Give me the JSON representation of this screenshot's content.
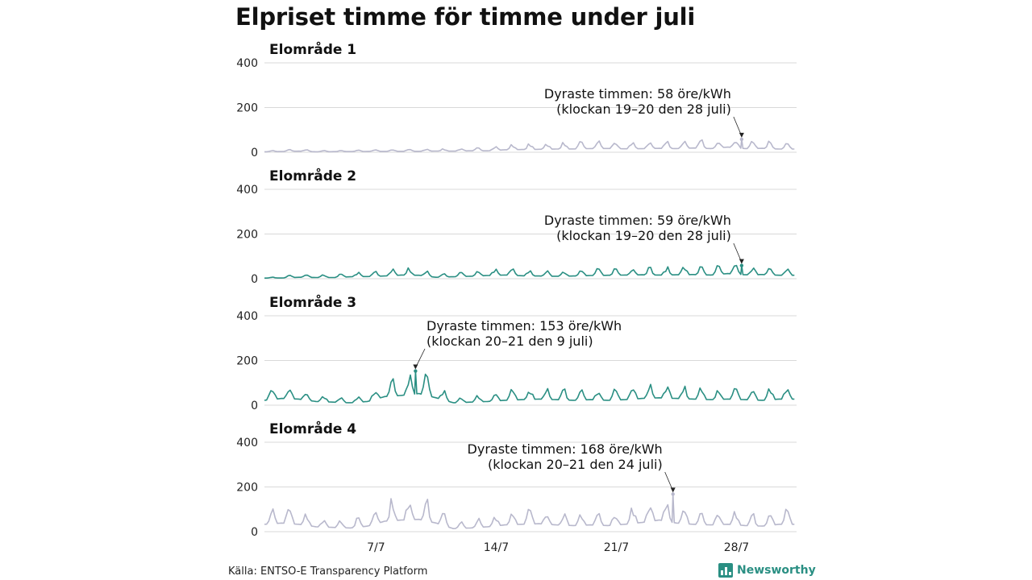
{
  "title": "Elpriset timme för timme under juli",
  "source": "Källa: ENTSO-E Transparency Platform",
  "brand": {
    "name": "Newsworthy",
    "icon": "newsworthy-logo-icon",
    "color": "#2a8f83"
  },
  "chart_data": {
    "type": "line",
    "days_in_month": 31,
    "x_ticks": [
      {
        "day": 7,
        "label": "7/7"
      },
      {
        "day": 14,
        "label": "14/7"
      },
      {
        "day": 21,
        "label": "21/7"
      },
      {
        "day": 28,
        "label": "28/7"
      }
    ],
    "y_ticks": [
      0,
      200,
      400
    ],
    "ylim": [
      0,
      400
    ],
    "unit": "öre/kWh",
    "grid": true,
    "panels": [
      {
        "name": "Elområde 1",
        "color": "#b8b8cc",
        "values": [
          4,
          6,
          9,
          4,
          5,
          6,
          7,
          7,
          8,
          8,
          10,
          9,
          12,
          12,
          20,
          22,
          24,
          26,
          27,
          30,
          31,
          28,
          29,
          32,
          30,
          35,
          30,
          42,
          30,
          32,
          26
        ],
        "peak": {
          "day": 28,
          "value": 58,
          "line1": "Dyraste timmen: 58 öre/kWh",
          "line2": "(klockan 19–20 den 28 juli)"
        }
      },
      {
        "name": "Elområde 2",
        "color": "#2a8f83",
        "values": [
          5,
          6,
          12,
          10,
          10,
          16,
          18,
          22,
          30,
          28,
          12,
          16,
          20,
          26,
          30,
          24,
          22,
          20,
          22,
          26,
          28,
          30,
          32,
          30,
          32,
          34,
          30,
          42,
          32,
          34,
          28
        ],
        "peak": {
          "day": 28,
          "value": 59,
          "line1": "Dyraste timmen: 59 öre/kWh",
          "line2": "(klockan 19–20 den 28 juli)"
        }
      },
      {
        "name": "Elområde 3",
        "color": "#2a8f83",
        "values": [
          40,
          55,
          50,
          30,
          25,
          20,
          30,
          70,
          80,
          95,
          60,
          20,
          25,
          30,
          40,
          45,
          50,
          45,
          40,
          45,
          40,
          45,
          55,
          60,
          55,
          50,
          45,
          50,
          45,
          40,
          50
        ],
        "peak": {
          "day": 9,
          "value": 153,
          "line1": "Dyraste timmen: 153 öre/kWh",
          "line2": "(klockan 20–21 den 9 juli)"
        }
      },
      {
        "name": "Elområde 4",
        "color": "#b8b8cc",
        "values": [
          60,
          70,
          60,
          40,
          35,
          30,
          45,
          85,
          95,
          100,
          70,
          25,
          30,
          40,
          55,
          60,
          65,
          55,
          50,
          55,
          50,
          60,
          75,
          95,
          70,
          60,
          55,
          60,
          50,
          45,
          60
        ],
        "peak": {
          "day": 24,
          "value": 168,
          "line1": "Dyraste timmen: 168 öre/kWh",
          "line2": "(klockan 20–21 den 24 juli)"
        }
      }
    ]
  }
}
